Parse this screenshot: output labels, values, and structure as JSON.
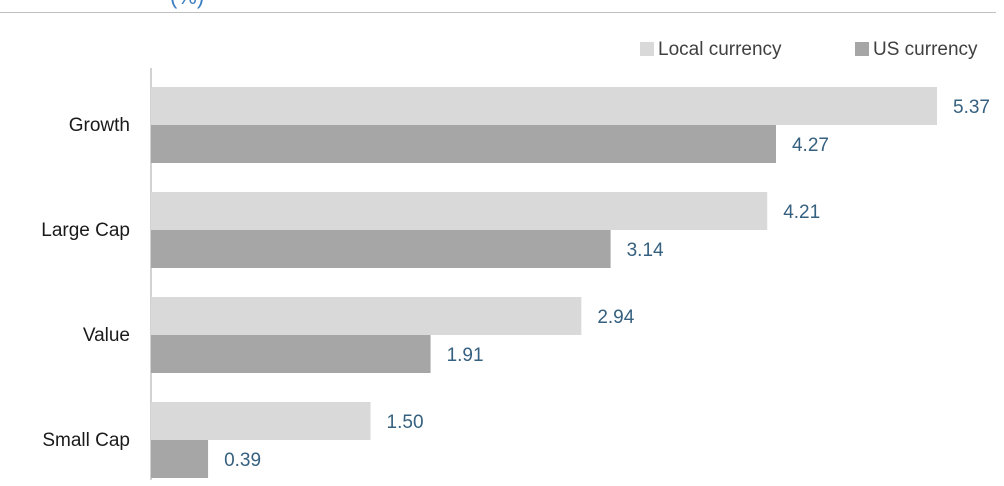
{
  "header": {
    "title_partial": "(%)"
  },
  "chart_data": {
    "type": "bar",
    "orientation": "horizontal",
    "categories": [
      "Growth",
      "Large Cap",
      "Value",
      "Small Cap"
    ],
    "series": [
      {
        "name": "Local currency",
        "values": [
          5.37,
          4.21,
          2.94,
          1.5
        ],
        "labels": [
          "5.37",
          "4.21",
          "2.94",
          "1.50"
        ],
        "color": "#d9d9d9"
      },
      {
        "name": "US currency",
        "values": [
          4.27,
          3.14,
          1.91,
          0.39
        ],
        "labels": [
          "4.27",
          "3.14",
          "1.91",
          "0.39"
        ],
        "color": "#a6a6a6"
      }
    ],
    "xlim": [
      0,
      5.37
    ],
    "title": "",
    "xlabel": "",
    "ylabel": "",
    "grid": false,
    "legend_position": "top-right",
    "label_color": "#35607f"
  }
}
